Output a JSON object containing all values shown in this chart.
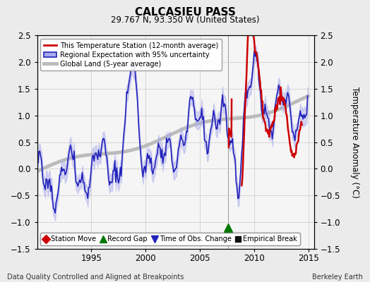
{
  "title": "CALCASIEU PASS",
  "subtitle": "29.767 N, 93.350 W (United States)",
  "ylabel": "Temperature Anomaly (°C)",
  "xlabel_left": "Data Quality Controlled and Aligned at Breakpoints",
  "xlabel_right": "Berkeley Earth",
  "ylim": [
    -1.5,
    2.5
  ],
  "xlim": [
    1990.0,
    2015.5
  ],
  "xticks": [
    1995,
    2000,
    2005,
    2010,
    2015
  ],
  "yticks": [
    -1.5,
    -1.0,
    -0.5,
    0.0,
    0.5,
    1.0,
    1.5,
    2.0,
    2.5
  ],
  "legend_items": [
    {
      "label": "This Temperature Station (12-month average)",
      "color": "#cc0000",
      "lw": 1.8
    },
    {
      "label": "Regional Expectation with 95% uncertainty",
      "color": "#2222bb",
      "lw": 1.2
    },
    {
      "label": "Global Land (5-year average)",
      "color": "#bbbbbb",
      "lw": 3.5
    }
  ],
  "marker_legend": [
    {
      "label": "Station Move",
      "color": "#cc0000",
      "marker": "D"
    },
    {
      "label": "Record Gap",
      "color": "#007700",
      "marker": "^"
    },
    {
      "label": "Time of Obs. Change",
      "color": "#2222bb",
      "marker": "v"
    },
    {
      "label": "Empirical Break",
      "color": "#111111",
      "marker": "s"
    }
  ],
  "record_gap_x": 2007.6,
  "record_gap_y": -1.1,
  "background_color": "#ebebeb",
  "plot_bg_color": "#f5f5f5",
  "grid_color": "#d0d0d0",
  "title_fontsize": 11,
  "subtitle_fontsize": 8.5,
  "tick_fontsize": 8.5,
  "uncertainty_color": "#aaaaee",
  "uncertainty_alpha": 0.45
}
